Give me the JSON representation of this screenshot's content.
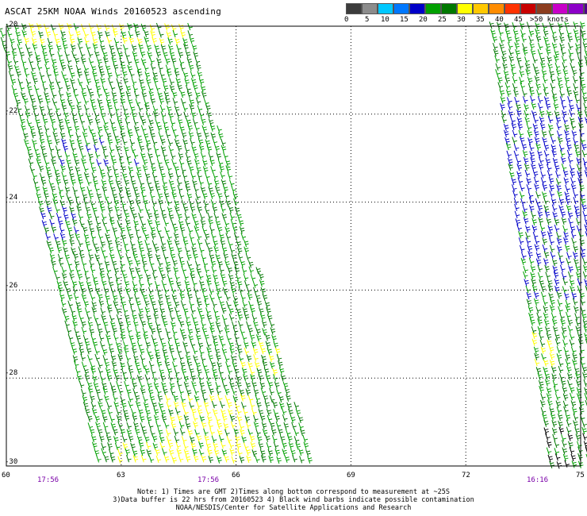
{
  "title": "ASCAT 25KM NOAA Winds 20160523 ascending",
  "legend": {
    "labels": [
      "0",
      "5",
      "10",
      "15",
      "20",
      "25",
      "30",
      "35",
      "40",
      "45",
      ">50 knots"
    ],
    "colors": [
      "#3c3c3c",
      "#8c8c8c",
      "#00c8ff",
      "#0078ff",
      "#0000c8",
      "#00a000",
      "#007800",
      "#ffff00",
      "#ffc800",
      "#ff8c00",
      "#ff3200",
      "#c80000",
      "#8c3c1e",
      "#c800c8",
      "#8c00c8",
      "#50008c"
    ]
  },
  "map": {
    "lat_ticks": [
      "-20",
      "-22",
      "-24",
      "-26",
      "-28",
      "-30"
    ],
    "lon_ticks": [
      "60",
      "63",
      "66",
      "69",
      "72",
      "75"
    ],
    "lat_range": [
      -30,
      -20
    ],
    "lon_range": [
      60,
      75
    ],
    "grid": "dotted"
  },
  "times": [
    "17:56",
    "17:56",
    "16:16"
  ],
  "notes": [
    "Note: 1) Times are GMT 2)Times along bottom correspond to measurement at ~25S",
    "3)Data buffer is 22 hrs from 20160523 4) Black wind barbs indicate possible contamination",
    "NOAA/NESDIS/Center for Satellite Applications and Research"
  ],
  "wind_colors": {
    "light_green": "#00a000",
    "dark_green": "#007800",
    "blue": "#0000c8",
    "yellow": "#ffff00"
  }
}
